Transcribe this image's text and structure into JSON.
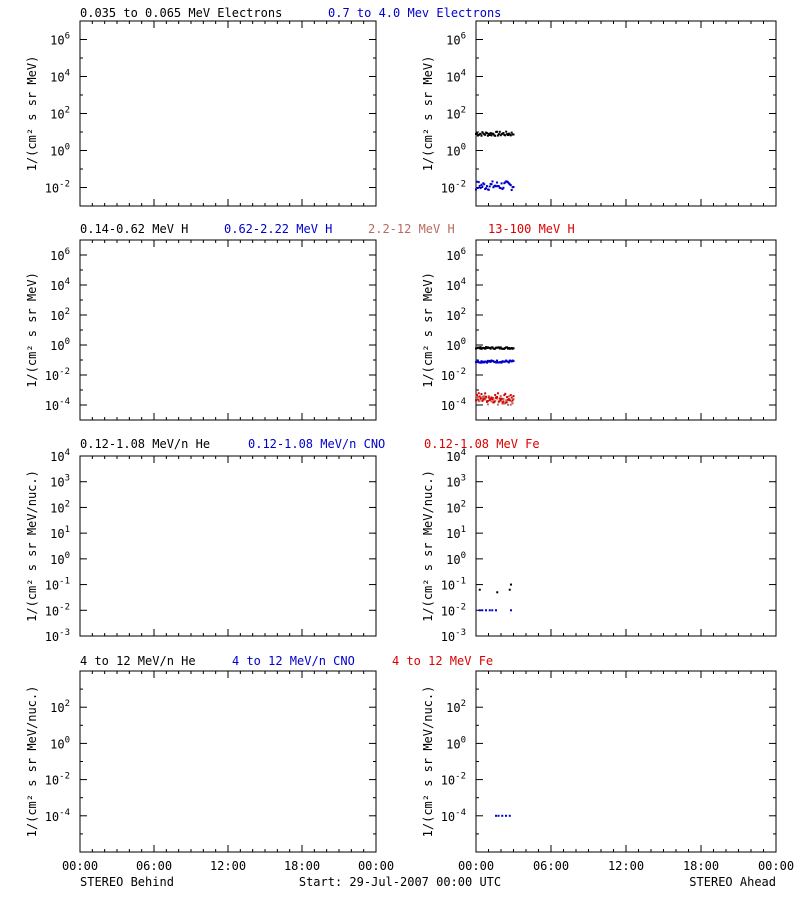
{
  "colors": {
    "black": "#000000",
    "blue": "#0000cc",
    "salmon": "#b86a5e",
    "red": "#dd0000"
  },
  "ylabel_elec_h": "1/(cm² s sr MeV)",
  "ylabel_ions": "1/(cm² s sr MeV/nuc.)",
  "x_ticks": [
    "00:00",
    "06:00",
    "12:00",
    "18:00",
    "00:00"
  ],
  "footer": {
    "left": "STEREO Behind",
    "center": "Start: 29-Jul-2007 00:00 UTC",
    "right": "STEREO Ahead"
  },
  "chart_data": [
    {
      "type": "scatter",
      "panel": "row-1-left",
      "yscale": "log",
      "ylim_exp": [
        -3,
        7
      ],
      "y_ticks": [
        {
          "mant": "10",
          "exp": "-2"
        },
        {
          "mant": "10",
          "exp": "0"
        },
        {
          "mant": "10",
          "exp": "2"
        },
        {
          "mant": "10",
          "exp": "4"
        },
        {
          "mant": "10",
          "exp": "6"
        }
      ],
      "xlim_hours": [
        0,
        24
      ],
      "series": []
    },
    {
      "type": "scatter",
      "panel": "row-1-right",
      "yscale": "log",
      "ylim_exp": [
        -3,
        7
      ],
      "y_ticks": [
        {
          "mant": "10",
          "exp": "-2"
        },
        {
          "mant": "10",
          "exp": "0"
        },
        {
          "mant": "10",
          "exp": "2"
        },
        {
          "mant": "10",
          "exp": "4"
        },
        {
          "mant": "10",
          "exp": "6"
        }
      ],
      "xlim_hours": [
        0,
        24
      ],
      "series": [
        {
          "name": "0.035 to 0.065 MeV Electrons",
          "color": "#000000",
          "x_hours": [
            0.0,
            3.0
          ],
          "y_log10": 0.9,
          "jitter": 0.12
        },
        {
          "name": "0.7 to 4.0 Mev Electrons",
          "color": "#0000cc",
          "x_hours": [
            0.0,
            3.0
          ],
          "y_log10": -1.9,
          "jitter": 0.25
        }
      ]
    },
    {
      "type": "scatter",
      "panel": "row-2-left",
      "yscale": "log",
      "ylim_exp": [
        -5,
        7
      ],
      "y_ticks": [
        {
          "mant": "10",
          "exp": "-4"
        },
        {
          "mant": "10",
          "exp": "-2"
        },
        {
          "mant": "10",
          "exp": "0"
        },
        {
          "mant": "10",
          "exp": "2"
        },
        {
          "mant": "10",
          "exp": "4"
        },
        {
          "mant": "10",
          "exp": "6"
        }
      ],
      "xlim_hours": [
        0,
        24
      ],
      "series": []
    },
    {
      "type": "scatter",
      "panel": "row-2-right",
      "yscale": "log",
      "ylim_exp": [
        -5,
        7
      ],
      "y_ticks": [
        {
          "mant": "10",
          "exp": "-4"
        },
        {
          "mant": "10",
          "exp": "-2"
        },
        {
          "mant": "10",
          "exp": "0"
        },
        {
          "mant": "10",
          "exp": "2"
        },
        {
          "mant": "10",
          "exp": "4"
        },
        {
          "mant": "10",
          "exp": "6"
        }
      ],
      "xlim_hours": [
        0,
        24
      ],
      "series": [
        {
          "name": "0.14-0.62 MeV H",
          "color": "#000000",
          "x_hours": [
            0.0,
            3.0
          ],
          "y_log10": -0.2,
          "jitter": 0.06
        },
        {
          "name": "0.62-2.22 MeV H",
          "color": "#0000cc",
          "x_hours": [
            0.0,
            3.0
          ],
          "y_log10": -1.1,
          "jitter": 0.08
        },
        {
          "name": "2.2-12 MeV H",
          "color": "#b86a5e",
          "x_hours": [
            0.0,
            3.0
          ],
          "y_log10": -3.7,
          "jitter": 0.3
        },
        {
          "name": "13-100 MeV H",
          "color": "#dd0000",
          "x_hours": [
            0.0,
            3.0
          ],
          "y_log10": -3.5,
          "jitter": 0.35
        }
      ]
    },
    {
      "type": "scatter",
      "panel": "row-3-left",
      "yscale": "log",
      "ylim_exp": [
        -3,
        4
      ],
      "y_ticks": [
        {
          "mant": "10",
          "exp": "-3"
        },
        {
          "mant": "10",
          "exp": "-2"
        },
        {
          "mant": "10",
          "exp": "-1"
        },
        {
          "mant": "10",
          "exp": "0"
        },
        {
          "mant": "10",
          "exp": "1"
        },
        {
          "mant": "10",
          "exp": "2"
        },
        {
          "mant": "10",
          "exp": "3"
        },
        {
          "mant": "10",
          "exp": "4"
        }
      ],
      "xlim_hours": [
        0,
        24
      ],
      "series": []
    },
    {
      "type": "scatter",
      "panel": "row-3-right",
      "yscale": "log",
      "ylim_exp": [
        -3,
        4
      ],
      "y_ticks": [
        {
          "mant": "10",
          "exp": "-3"
        },
        {
          "mant": "10",
          "exp": "-2"
        },
        {
          "mant": "10",
          "exp": "-1"
        },
        {
          "mant": "10",
          "exp": "0"
        },
        {
          "mant": "10",
          "exp": "1"
        },
        {
          "mant": "10",
          "exp": "2"
        },
        {
          "mant": "10",
          "exp": "3"
        },
        {
          "mant": "10",
          "exp": "4"
        }
      ],
      "xlim_hours": [
        0,
        24
      ],
      "series": [
        {
          "name": "0.12-1.08 MeV/n He",
          "color": "#000000",
          "points": [
            [
              0.3,
              -1.2
            ],
            [
              1.7,
              -1.3
            ],
            [
              2.7,
              -1.2
            ],
            [
              2.8,
              -1.0
            ]
          ]
        },
        {
          "name": "0.12-1.08 MeV/n CNO",
          "color": "#0000cc",
          "points": [
            [
              0.3,
              -2.0
            ],
            [
              0.5,
              -2.0
            ],
            [
              0.8,
              -2.0
            ],
            [
              1.1,
              -2.0
            ],
            [
              1.3,
              -2.0
            ],
            [
              1.6,
              -2.0
            ],
            [
              2.8,
              -2.0
            ]
          ]
        }
      ]
    },
    {
      "type": "scatter",
      "panel": "row-4-left",
      "yscale": "log",
      "ylim_exp": [
        -6,
        4
      ],
      "y_ticks": [
        {
          "mant": "10",
          "exp": "-4"
        },
        {
          "mant": "10",
          "exp": "-2"
        },
        {
          "mant": "10",
          "exp": "0"
        },
        {
          "mant": "10",
          "exp": "2"
        }
      ],
      "xlim_hours": [
        0,
        24
      ],
      "series": []
    },
    {
      "type": "scatter",
      "panel": "row-4-right",
      "yscale": "log",
      "ylim_exp": [
        -6,
        4
      ],
      "y_ticks": [
        {
          "mant": "10",
          "exp": "-4"
        },
        {
          "mant": "10",
          "exp": "-2"
        },
        {
          "mant": "10",
          "exp": "0"
        },
        {
          "mant": "10",
          "exp": "2"
        }
      ],
      "xlim_hours": [
        0,
        24
      ],
      "series": [
        {
          "name": "4 to 12 MeV/n CNO",
          "color": "#0000cc",
          "points": [
            [
              1.6,
              -4.0
            ],
            [
              1.8,
              -4.0
            ],
            [
              2.1,
              -4.0
            ],
            [
              2.4,
              -4.0
            ],
            [
              2.7,
              -4.0
            ]
          ]
        }
      ]
    }
  ],
  "legends": [
    {
      "items": [
        {
          "text": "0.035 to 0.065 MeV Electrons",
          "color": "#000000"
        },
        {
          "text": "0.7 to 4.0 Mev Electrons",
          "color": "#0000cc"
        }
      ]
    },
    {
      "items": [
        {
          "text": "0.14-0.62 MeV H",
          "color": "#000000"
        },
        {
          "text": "0.62-2.22 MeV H",
          "color": "#0000cc"
        },
        {
          "text": "2.2-12 MeV H",
          "color": "#b86a5e"
        },
        {
          "text": "13-100 MeV H",
          "color": "#dd0000"
        }
      ]
    },
    {
      "items": [
        {
          "text": "0.12-1.08 MeV/n He",
          "color": "#000000"
        },
        {
          "text": "0.12-1.08 MeV/n CNO",
          "color": "#0000cc"
        },
        {
          "text": "0.12-1.08 MeV Fe",
          "color": "#dd0000"
        }
      ]
    },
    {
      "items": [
        {
          "text": "4 to 12 MeV/n He",
          "color": "#000000"
        },
        {
          "text": "4 to 12 MeV/n CNO",
          "color": "#0000cc"
        },
        {
          "text": "4 to 12 MeV Fe",
          "color": "#dd0000"
        }
      ]
    }
  ]
}
